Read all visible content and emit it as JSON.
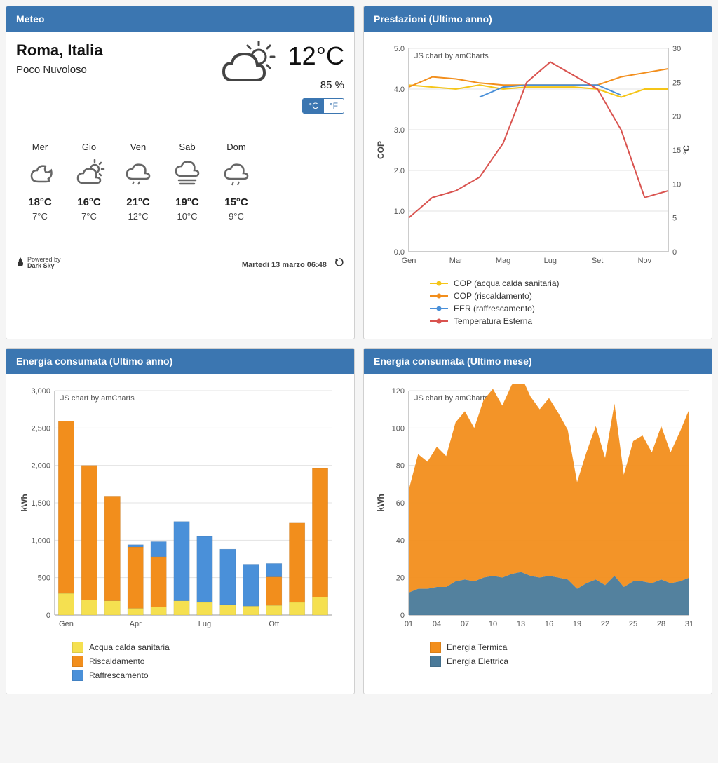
{
  "panels": {
    "weather": {
      "title": "Meteo"
    },
    "performance": {
      "title": "Prestazioni (Ultimo anno)"
    },
    "energy_year": {
      "title": "Energia consumata (Ultimo anno)"
    },
    "energy_month": {
      "title": "Energia consumata (Ultimo mese)"
    }
  },
  "weather": {
    "location": "Roma, Italia",
    "condition": "Poco Nuvoloso",
    "temperature": "12°C",
    "humidity": "85 %",
    "unit_c": "°C",
    "unit_f": "°F",
    "forecast": [
      {
        "day": "Mer",
        "hi": "18°C",
        "lo": "7°C"
      },
      {
        "day": "Gio",
        "hi": "16°C",
        "lo": "7°C"
      },
      {
        "day": "Ven",
        "hi": "21°C",
        "lo": "12°C"
      },
      {
        "day": "Sab",
        "hi": "19°C",
        "lo": "10°C"
      },
      {
        "day": "Dom",
        "hi": "15°C",
        "lo": "9°C"
      }
    ],
    "powered_label": "Powered by",
    "powered_name": "Dark Sky",
    "timestamp": "Martedì 13 marzo 06:48"
  },
  "chart_attr": "JS chart by amCharts",
  "performance_chart": {
    "type": "line",
    "y1_label": "COP",
    "y1_min": 0,
    "y1_max": 5,
    "y1_step": 1,
    "y2_label": "°C",
    "y2_min": 0,
    "y2_max": 30,
    "y2_step": 5,
    "x_labels": [
      "Gen",
      "",
      "Mar",
      "",
      "Mag",
      "",
      "Lug",
      "",
      "Set",
      "",
      "Nov",
      ""
    ],
    "series": [
      {
        "name": "COP (acqua calda sanitaria)",
        "color": "#f5c518",
        "axis": "y1",
        "values": [
          4.1,
          4.05,
          4.0,
          4.1,
          4.0,
          4.05,
          4.05,
          4.05,
          4.0,
          3.8,
          4.0,
          4.0
        ]
      },
      {
        "name": "COP (riscaldamento)",
        "color": "#f28e1c",
        "axis": "y1",
        "values": [
          4.05,
          4.3,
          4.25,
          4.15,
          4.1,
          4.1,
          4.1,
          4.1,
          4.1,
          4.3,
          4.4,
          4.5
        ]
      },
      {
        "name": "EER (raffrescamento)",
        "color": "#4a90d9",
        "axis": "y1",
        "values": [
          null,
          null,
          null,
          3.8,
          4.05,
          4.1,
          4.1,
          4.1,
          4.1,
          3.85,
          null,
          null
        ]
      },
      {
        "name": "Temperatura Esterna",
        "color": "#d9534f",
        "axis": "y2",
        "values": [
          5,
          8,
          9,
          11,
          16,
          25,
          28,
          26,
          24,
          18,
          8,
          9
        ]
      }
    ]
  },
  "energy_year_chart": {
    "type": "stacked-bar",
    "y_label": "kWh",
    "y_min": 0,
    "y_max": 3000,
    "y_step": 500,
    "x_labels": [
      "Gen",
      "",
      "",
      "Apr",
      "",
      "",
      "Lug",
      "",
      "",
      "Ott",
      "",
      ""
    ],
    "categories": 12,
    "bar_width": 0.68,
    "series": [
      {
        "name": "Acqua calda sanitaria",
        "color": "#f5e050",
        "values": [
          290,
          200,
          190,
          90,
          110,
          190,
          170,
          140,
          120,
          130,
          170,
          240
        ]
      },
      {
        "name": "Riscaldamento",
        "color": "#f28e1c",
        "values": [
          2300,
          1800,
          1400,
          820,
          670,
          0,
          0,
          0,
          0,
          380,
          1060,
          1720
        ]
      },
      {
        "name": "Raffrescamento",
        "color": "#4a90d9",
        "values": [
          0,
          0,
          0,
          30,
          200,
          1060,
          880,
          740,
          560,
          180,
          0,
          0
        ]
      }
    ]
  },
  "energy_month_chart": {
    "type": "stacked-area",
    "y_label": "kWh",
    "y_min": 0,
    "y_max": 120,
    "y_step": 20,
    "x_min": 1,
    "x_max": 31,
    "x_step": 3,
    "series": [
      {
        "name": "Energia Termica",
        "color": "#f28e1c",
        "values": [
          55,
          72,
          68,
          75,
          70,
          85,
          90,
          82,
          95,
          100,
          92,
          101,
          105,
          96,
          90,
          95,
          88,
          80,
          57,
          70,
          82,
          68,
          92,
          60,
          75,
          78,
          70,
          82,
          70,
          80,
          90
        ]
      },
      {
        "name": "Energia Elettrica",
        "color": "#4a7a99",
        "values": [
          12,
          14,
          14,
          15,
          15,
          18,
          19,
          18,
          20,
          21,
          20,
          22,
          23,
          21,
          20,
          21,
          20,
          19,
          14,
          17,
          19,
          16,
          21,
          15,
          18,
          18,
          17,
          19,
          17,
          18,
          20
        ]
      }
    ]
  },
  "colors": {
    "panel_header": "#3b76b1",
    "icon_stroke": "#666"
  }
}
